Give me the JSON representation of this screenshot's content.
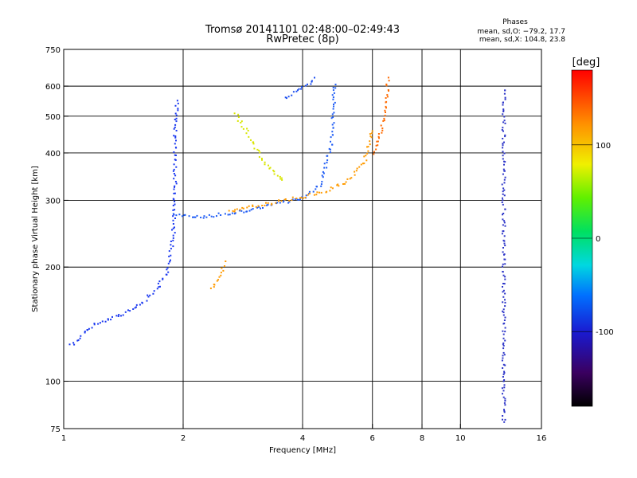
{
  "chart_data": {
    "type": "scatter",
    "title": "Tromsø 20141101 02:48:00–02:49:43",
    "subtitle": "RwPretec (8p)",
    "xlabel": "Frequency [MHz]",
    "ylabel": "Stationary phase Virtual Height [km]",
    "x_scale": "log",
    "y_scale": "log",
    "xlim": [
      1,
      16
    ],
    "ylim": [
      75,
      750
    ],
    "x_ticks": [
      1,
      2,
      4,
      6,
      8,
      10,
      16
    ],
    "y_ticks": [
      75,
      100,
      200,
      300,
      400,
      500,
      600,
      750
    ],
    "x_gridlines": [
      2,
      4,
      6,
      8,
      10
    ],
    "y_gridlines": [
      100,
      200,
      300,
      400,
      500,
      600
    ],
    "grid": true,
    "info_lines": [
      "Phases",
      "mean, sd,O: −79.2, 17.7",
      "mean, sd,X: 104.8, 23.8"
    ],
    "colorbar": {
      "label": "[deg]",
      "range": [
        -180,
        180
      ],
      "ticks": [
        100,
        0,
        -100
      ],
      "colormap": "rainbow"
    },
    "approximate_traces": [
      {
        "name": "O-mode low-frequency trace",
        "color": "#1b39f0",
        "x": [
          1.04,
          1.2,
          1.4,
          1.55,
          1.7,
          1.82,
          1.88,
          1.9,
          1.9,
          1.92
        ],
        "y": [
          125,
          143,
          150,
          160,
          175,
          195,
          240,
          330,
          450,
          560
        ],
        "phase_deg": -105
      },
      {
        "name": "O-mode F2 trace",
        "color": "#1f5cf5",
        "x": [
          1.9,
          2.2,
          2.6,
          3.0,
          3.5,
          4.0,
          4.4,
          4.7,
          4.8
        ],
        "y": [
          275,
          272,
          278,
          287,
          297,
          306,
          330,
          420,
          620
        ],
        "phase_deg": -95
      },
      {
        "name": "X-mode F2 trace",
        "color": "#ff9b00",
        "x": [
          2.6,
          3.0,
          3.4,
          4.0,
          4.6,
          5.2,
          5.7,
          6.0
        ],
        "y": [
          282,
          290,
          298,
          308,
          320,
          340,
          380,
          470
        ],
        "phase_deg": 110
      },
      {
        "name": "X-mode upper cusp",
        "color": "#ff6a00",
        "x": [
          6.0,
          6.3,
          6.5,
          6.55
        ],
        "y": [
          400,
          470,
          560,
          640
        ],
        "phase_deg": 130
      },
      {
        "name": "Second-hop echo",
        "color": "#1a4cf0",
        "x": [
          3.6,
          4.0,
          4.2,
          4.3
        ],
        "y": [
          560,
          600,
          620,
          640
        ],
        "phase_deg": -100
      },
      {
        "name": "Sporadic arc",
        "color": "#d8e600",
        "x": [
          2.7,
          2.9,
          3.1,
          3.3,
          3.6
        ],
        "y": [
          510,
          450,
          400,
          365,
          335
        ],
        "phase_deg": 60
      },
      {
        "name": "Low-frequency X echoes",
        "color": "#ff9b00",
        "x": [
          2.35,
          2.45,
          2.55
        ],
        "y": [
          175,
          190,
          210
        ],
        "phase_deg": 120
      },
      {
        "name": "Right-side vertical line",
        "color": "#2d35c8",
        "x": [
          12.8,
          12.8,
          12.8
        ],
        "y": [
          78,
          300,
          600
        ],
        "phase_deg": -110
      }
    ]
  }
}
